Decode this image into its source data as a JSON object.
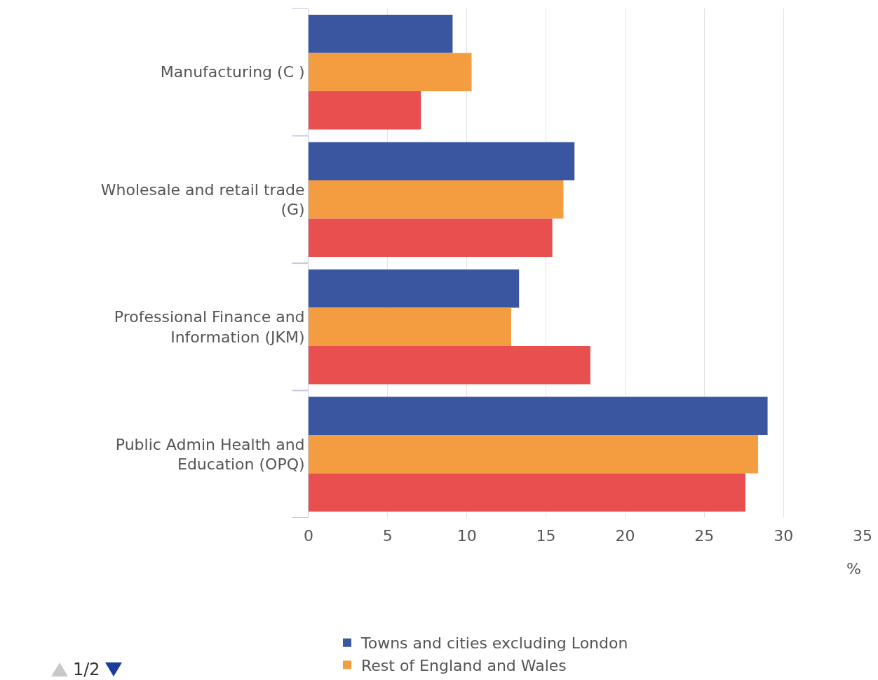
{
  "chart_data": {
    "type": "bar",
    "orientation": "horizontal",
    "categories": [
      "Manufacturing (C )",
      "Wholesale and retail trade (G)",
      "Professional Finance and Information (JKM)",
      "Public Admin Health and Education (OPQ)"
    ],
    "series": [
      {
        "name": "Towns and cities excluding London",
        "color": "#3b56a0",
        "values": [
          9.1,
          16.8,
          13.3,
          29.0
        ]
      },
      {
        "name": "Rest of England and Wales",
        "color": "#f49d40",
        "values": [
          10.3,
          16.1,
          12.8,
          28.4
        ]
      },
      {
        "color": "#e84f4f",
        "values": [
          7.1,
          15.4,
          17.8,
          27.6
        ]
      }
    ],
    "xlim": [
      0,
      35
    ],
    "xticks": [
      0,
      5,
      10,
      15,
      20,
      25,
      30,
      35
    ],
    "xlabel": "%",
    "grid": "x",
    "legend": "bottom",
    "annotations": [
      "1/2"
    ]
  }
}
